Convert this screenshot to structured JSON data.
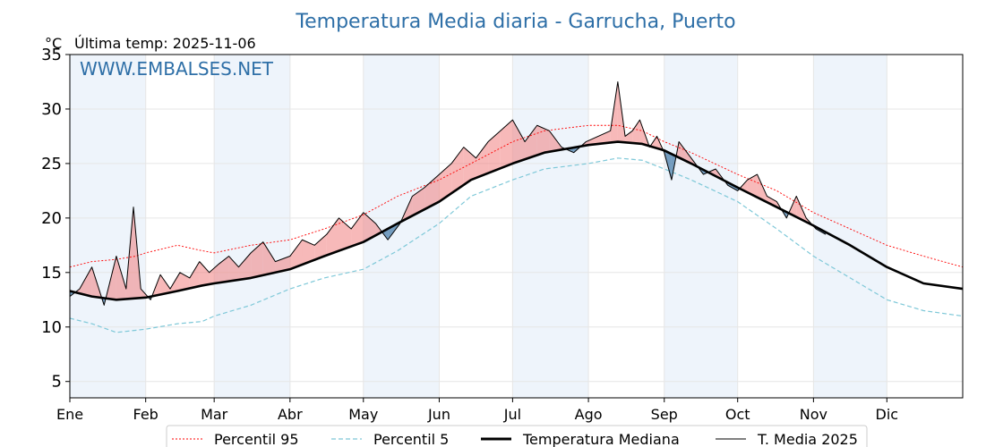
{
  "header": {
    "title": "Temperatura Media diaria - Garrucha, Puerto",
    "unit": "°C",
    "last_temp": "Última temp: 2025-11-06",
    "watermark": "WWW.EMBALSES.NET"
  },
  "legend": {
    "p95": "Percentil 95",
    "p5": "Percentil 5",
    "median": "Temperatura Mediana",
    "year": "T. Media 2025"
  },
  "colors": {
    "title": "#2e6fa7",
    "p95": "#ff0000",
    "p5": "#7ec8d8",
    "median": "#000000",
    "year": "#000000",
    "above": "#f08080",
    "below": "#4a7fab",
    "band": "#eef4fb"
  },
  "chart_data": {
    "type": "line",
    "title": "Temperatura Media diaria - Garrucha, Puerto",
    "ylabel": "°C",
    "ylim": [
      3.5,
      35
    ],
    "yticks": [
      5,
      10,
      15,
      20,
      25,
      30,
      35
    ],
    "xlim": [
      1,
      366
    ],
    "months": [
      {
        "label": "Ene",
        "day": 1
      },
      {
        "label": "Feb",
        "day": 32
      },
      {
        "label": "Mar",
        "day": 60
      },
      {
        "label": "Abr",
        "day": 91
      },
      {
        "label": "May",
        "day": 121
      },
      {
        "label": "Jun",
        "day": 152
      },
      {
        "label": "Jul",
        "day": 182
      },
      {
        "label": "Ago",
        "day": 213
      },
      {
        "label": "Sep",
        "day": 244
      },
      {
        "label": "Oct",
        "day": 274
      },
      {
        "label": "Nov",
        "day": 305
      },
      {
        "label": "Dic",
        "day": 335
      }
    ],
    "legend_position": "bottom-center",
    "grid": true,
    "series": [
      {
        "name": "Percentil 95",
        "x": [
          1,
          10,
          20,
          28,
          32,
          45,
          55,
          60,
          75,
          91,
          105,
          121,
          135,
          152,
          165,
          182,
          195,
          213,
          225,
          235,
          244,
          255,
          274,
          290,
          305,
          320,
          335,
          350,
          366
        ],
        "values": [
          15.5,
          16.0,
          16.2,
          16.5,
          16.8,
          17.5,
          17.0,
          16.8,
          17.5,
          18.0,
          19.0,
          20.3,
          22.0,
          23.5,
          25.0,
          27.0,
          28.0,
          28.5,
          28.5,
          28.0,
          27.0,
          26.0,
          24.0,
          22.5,
          20.5,
          19.0,
          17.5,
          16.5,
          15.5
        ]
      },
      {
        "name": "Percentil 5",
        "x": [
          1,
          10,
          20,
          32,
          45,
          55,
          60,
          75,
          91,
          105,
          121,
          135,
          152,
          165,
          182,
          195,
          213,
          225,
          235,
          244,
          255,
          274,
          290,
          305,
          320,
          335,
          350,
          366
        ],
        "values": [
          10.8,
          10.3,
          9.5,
          9.8,
          10.3,
          10.5,
          11.0,
          12.0,
          13.5,
          14.5,
          15.3,
          17.0,
          19.5,
          22.0,
          23.5,
          24.5,
          25.0,
          25.5,
          25.3,
          24.5,
          23.5,
          21.5,
          19.0,
          16.5,
          14.5,
          12.5,
          11.5,
          11.0
        ]
      },
      {
        "name": "Temperatura Mediana",
        "x": [
          1,
          10,
          20,
          32,
          45,
          55,
          60,
          75,
          91,
          105,
          121,
          135,
          152,
          165,
          182,
          195,
          213,
          225,
          235,
          244,
          255,
          274,
          290,
          305,
          320,
          335,
          350,
          366
        ],
        "values": [
          13.3,
          12.8,
          12.5,
          12.7,
          13.3,
          13.8,
          14.0,
          14.5,
          15.3,
          16.5,
          17.8,
          19.5,
          21.5,
          23.5,
          25.0,
          26.0,
          26.7,
          27.0,
          26.8,
          26.2,
          25.0,
          22.8,
          21.0,
          19.3,
          17.5,
          15.5,
          14.0,
          13.5
        ]
      },
      {
        "name": "T. Media 2025",
        "x": [
          1,
          5,
          10,
          15,
          20,
          24,
          27,
          30,
          34,
          38,
          42,
          46,
          50,
          54,
          58,
          62,
          66,
          70,
          75,
          80,
          85,
          91,
          96,
          101,
          106,
          111,
          116,
          121,
          126,
          131,
          136,
          141,
          146,
          152,
          157,
          162,
          167,
          172,
          177,
          182,
          187,
          192,
          197,
          202,
          207,
          212,
          217,
          222,
          225,
          228,
          231,
          234,
          238,
          241,
          244,
          247,
          250,
          255,
          260,
          265,
          270,
          274,
          278,
          282,
          286,
          290,
          294,
          298,
          302,
          306,
          310
        ],
        "values": [
          12.8,
          13.5,
          15.5,
          12.0,
          16.5,
          13.5,
          21.0,
          13.5,
          12.5,
          14.8,
          13.5,
          15.0,
          14.5,
          16.0,
          15.0,
          15.8,
          16.5,
          15.5,
          16.8,
          17.8,
          16.0,
          16.5,
          18.0,
          17.5,
          18.5,
          20.0,
          19.0,
          20.5,
          19.5,
          18.0,
          19.5,
          22.0,
          22.8,
          24.0,
          25.0,
          26.5,
          25.5,
          27.0,
          28.0,
          29.0,
          27.0,
          28.5,
          28.0,
          26.5,
          26.0,
          27.0,
          27.5,
          28.0,
          32.5,
          27.5,
          28.0,
          29.0,
          26.5,
          27.5,
          26.0,
          23.5,
          27.0,
          25.5,
          24.0,
          24.5,
          23.0,
          22.5,
          23.5,
          24.0,
          22.0,
          21.5,
          20.0,
          22.0,
          20.0,
          19.0,
          18.5
        ]
      }
    ]
  }
}
